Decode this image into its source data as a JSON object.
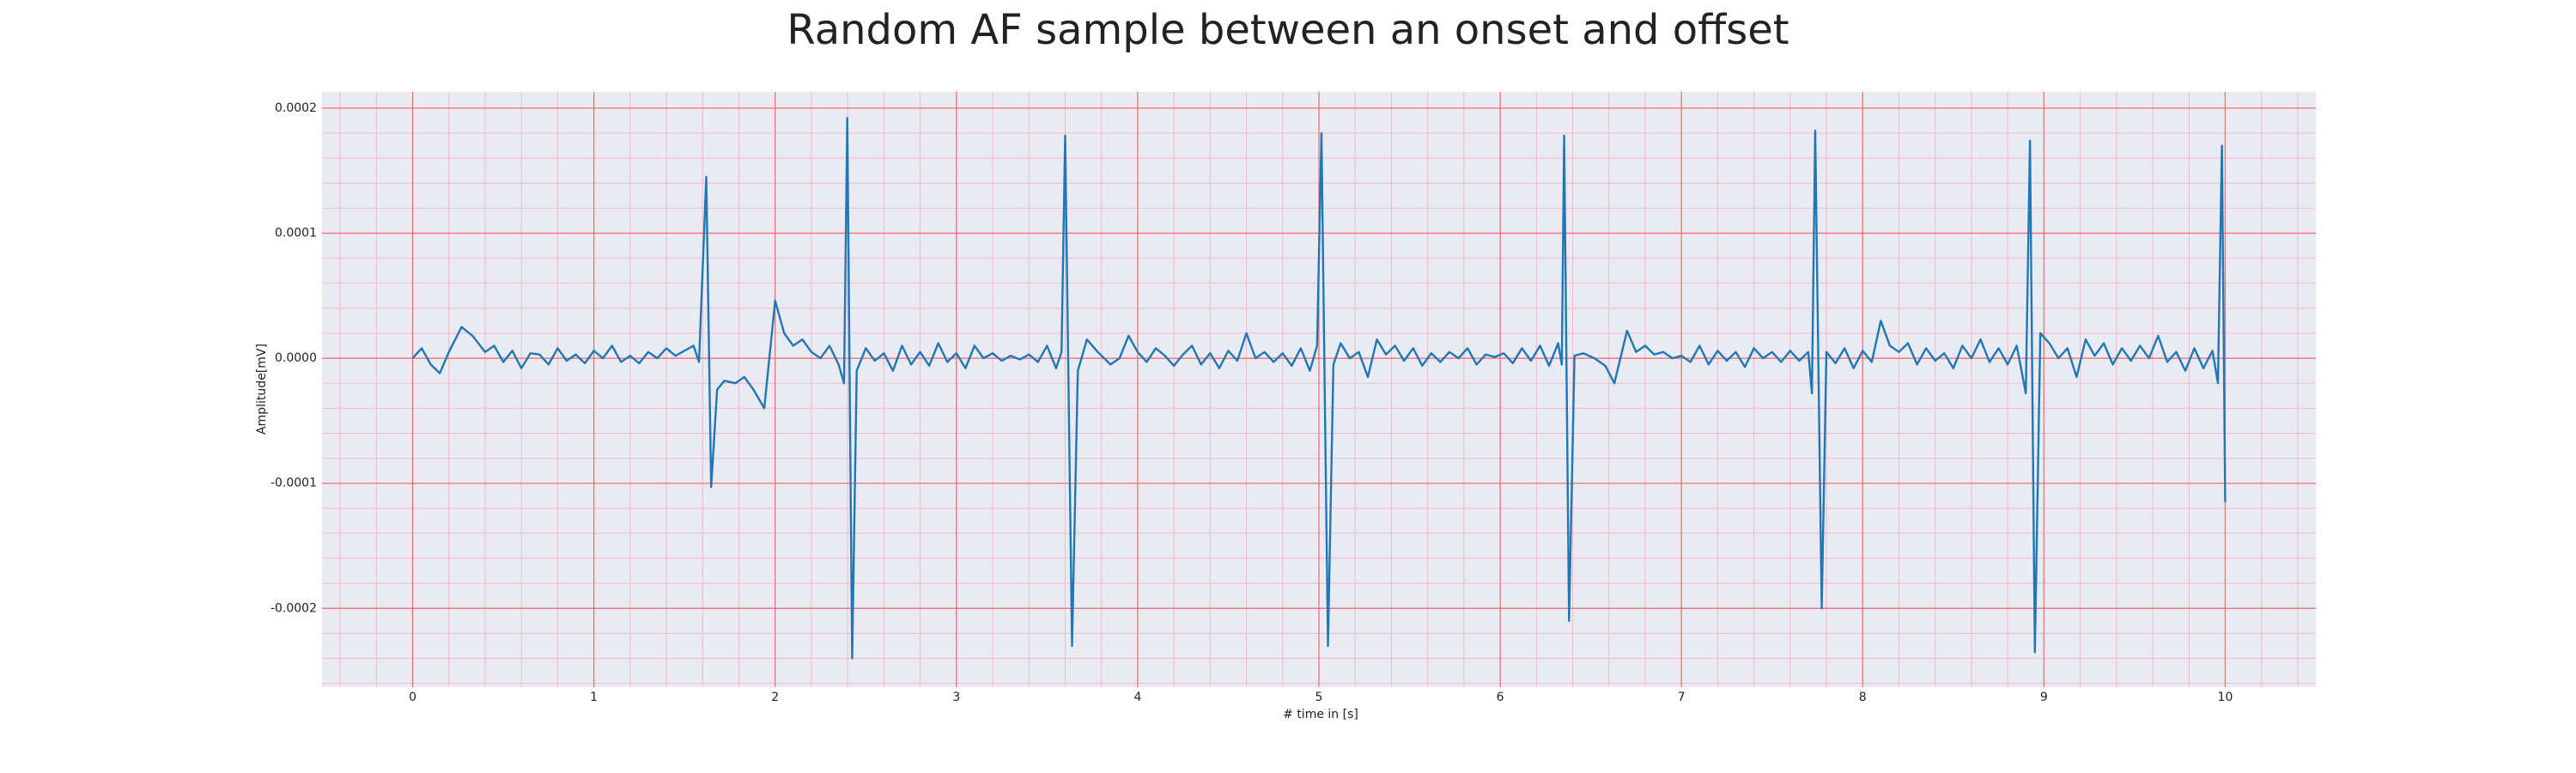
{
  "chart_data": {
    "type": "line",
    "title": "Random AF sample between an onset and offset",
    "x_label": "# time in [s]",
    "y_label": "Amplitude[mV]",
    "color": "#1f77b4",
    "grid": true,
    "minor_grid": true,
    "xlim": [
      -0.5,
      10.5
    ],
    "xticks": [
      0,
      1,
      2,
      3,
      4,
      5,
      6,
      7,
      8,
      9,
      10
    ],
    "ylim": [
      -0.000263,
      0.000213
    ],
    "yticks": [
      -0.0002,
      -0.0001,
      {
        "value": 0,
        "label": "0.0000"
      },
      0.0001,
      0.0002
    ],
    "x": [
      0,
      0.05,
      0.1,
      0.15,
      0.2,
      0.27,
      0.33,
      0.4,
      0.45,
      0.5,
      0.55,
      0.6,
      0.65,
      0.7,
      0.75,
      0.8,
      0.85,
      0.9,
      0.95,
      1.0,
      1.05,
      1.1,
      1.15,
      1.2,
      1.25,
      1.3,
      1.35,
      1.4,
      1.45,
      1.5,
      1.55,
      1.58,
      1.62,
      1.647,
      1.68,
      1.72,
      1.78,
      1.83,
      1.88,
      1.94,
      2.0,
      2.05,
      2.1,
      2.15,
      2.2,
      2.25,
      2.3,
      2.35,
      2.38,
      2.398,
      2.425,
      2.45,
      2.5,
      2.55,
      2.6,
      2.65,
      2.7,
      2.75,
      2.8,
      2.85,
      2.9,
      2.95,
      3.0,
      3.05,
      3.1,
      3.15,
      3.2,
      3.25,
      3.3,
      3.35,
      3.4,
      3.45,
      3.5,
      3.55,
      3.58,
      3.6,
      3.638,
      3.67,
      3.72,
      3.78,
      3.85,
      3.9,
      3.95,
      4.0,
      4.05,
      4.1,
      4.15,
      4.2,
      4.25,
      4.3,
      4.35,
      4.4,
      4.45,
      4.5,
      4.55,
      4.6,
      4.65,
      4.7,
      4.75,
      4.8,
      4.85,
      4.9,
      4.95,
      4.99,
      5.014,
      5.05,
      5.08,
      5.12,
      5.17,
      5.22,
      5.27,
      5.32,
      5.37,
      5.42,
      5.47,
      5.52,
      5.57,
      5.62,
      5.67,
      5.72,
      5.77,
      5.82,
      5.87,
      5.92,
      5.97,
      6.02,
      6.07,
      6.12,
      6.17,
      6.22,
      6.27,
      6.32,
      6.34,
      6.353,
      6.38,
      6.41,
      6.46,
      6.52,
      6.58,
      6.63,
      6.7,
      6.75,
      6.8,
      6.85,
      6.9,
      6.95,
      7.0,
      7.05,
      7.1,
      7.15,
      7.2,
      7.25,
      7.3,
      7.35,
      7.4,
      7.45,
      7.5,
      7.55,
      7.6,
      7.65,
      7.7,
      7.72,
      7.738,
      7.774,
      7.8,
      7.85,
      7.9,
      7.95,
      8.0,
      8.05,
      8.1,
      8.15,
      8.2,
      8.25,
      8.3,
      8.35,
      8.4,
      8.45,
      8.5,
      8.55,
      8.6,
      8.65,
      8.7,
      8.75,
      8.8,
      8.85,
      8.9,
      8.923,
      8.95,
      8.98,
      9.03,
      9.08,
      9.13,
      9.18,
      9.23,
      9.28,
      9.33,
      9.38,
      9.43,
      9.48,
      9.53,
      9.58,
      9.63,
      9.68,
      9.73,
      9.78,
      9.83,
      9.88,
      9.93,
      9.96,
      9.982,
      10.0
    ],
    "values": [
      0,
      8e-06,
      -5e-06,
      -1.2e-05,
      5e-06,
      2.5e-05,
      1.8e-05,
      5e-06,
      1e-05,
      -3e-06,
      6e-06,
      -8e-06,
      4e-06,
      3e-06,
      -5e-06,
      8e-06,
      -2e-06,
      3e-06,
      -4e-06,
      6e-06,
      0,
      1e-05,
      -3e-06,
      2e-06,
      -4e-06,
      5e-06,
      0,
      8e-06,
      2e-06,
      6e-06,
      1e-05,
      -3e-06,
      0.000145,
      -0.000103,
      -2.5e-05,
      -1.8e-05,
      -2e-05,
      -1.5e-05,
      -2.5e-05,
      -4e-05,
      4.6e-05,
      2e-05,
      1e-05,
      1.5e-05,
      5e-06,
      0,
      1e-05,
      -5e-06,
      -2e-05,
      0.000192,
      -0.00024,
      -1e-05,
      8e-06,
      -2e-06,
      4e-06,
      -1e-05,
      1e-05,
      -5e-06,
      5e-06,
      -6e-06,
      1.2e-05,
      -3e-06,
      4e-06,
      -8e-06,
      1e-05,
      0,
      4e-06,
      -2e-06,
      2e-06,
      -1e-06,
      3e-06,
      -3e-06,
      1e-05,
      -8e-06,
      5e-06,
      0.000178,
      -0.00023,
      -1e-05,
      1.5e-05,
      5e-06,
      -5e-06,
      0,
      1.8e-05,
      5e-06,
      -3e-06,
      8e-06,
      2e-06,
      -6e-06,
      3e-06,
      1e-05,
      -5e-06,
      4e-06,
      -8e-06,
      6e-06,
      -2e-06,
      2e-05,
      0,
      5e-06,
      -3e-06,
      4e-06,
      -6e-06,
      8e-06,
      -1e-05,
      1e-05,
      0.00018,
      -0.00023,
      -5e-06,
      1.2e-05,
      0,
      5e-06,
      -1.5e-05,
      1.5e-05,
      3e-06,
      1e-05,
      -2e-06,
      8e-06,
      -6e-06,
      4e-06,
      -3e-06,
      5e-06,
      0,
      8e-06,
      -5e-06,
      3e-06,
      1e-06,
      4e-06,
      -4e-06,
      8e-06,
      -2e-06,
      1e-05,
      -6e-06,
      1.2e-05,
      -5e-06,
      0.000178,
      -0.00021,
      2e-06,
      4e-06,
      0,
      -6e-06,
      -2e-05,
      2.2e-05,
      5e-06,
      1e-05,
      3e-06,
      5e-06,
      0,
      2e-06,
      -3e-06,
      1e-05,
      -5e-06,
      6e-06,
      -2e-06,
      5e-06,
      -7e-06,
      8e-06,
      0,
      5e-06,
      -3e-06,
      6e-06,
      -2e-06,
      5e-06,
      -2.8e-05,
      0.000182,
      -0.0002,
      5e-06,
      -4e-06,
      8e-06,
      -8e-06,
      6e-06,
      -3e-06,
      3e-05,
      1e-05,
      5e-06,
      1.2e-05,
      -5e-06,
      8e-06,
      -2e-06,
      4e-06,
      -8e-06,
      1e-05,
      0,
      1.5e-05,
      -3e-06,
      8e-06,
      -5e-06,
      1e-05,
      -2.8e-05,
      0.000174,
      -0.000235,
      2e-05,
      1.2e-05,
      0,
      8e-06,
      -1.5e-05,
      1.5e-05,
      2e-06,
      1.2e-05,
      -5e-06,
      8e-06,
      -2e-06,
      1e-05,
      0,
      1.8e-05,
      -3e-06,
      5e-06,
      -1e-05,
      8e-06,
      -8e-06,
      6e-06,
      -2e-05,
      0.00017,
      -0.000115
    ]
  }
}
